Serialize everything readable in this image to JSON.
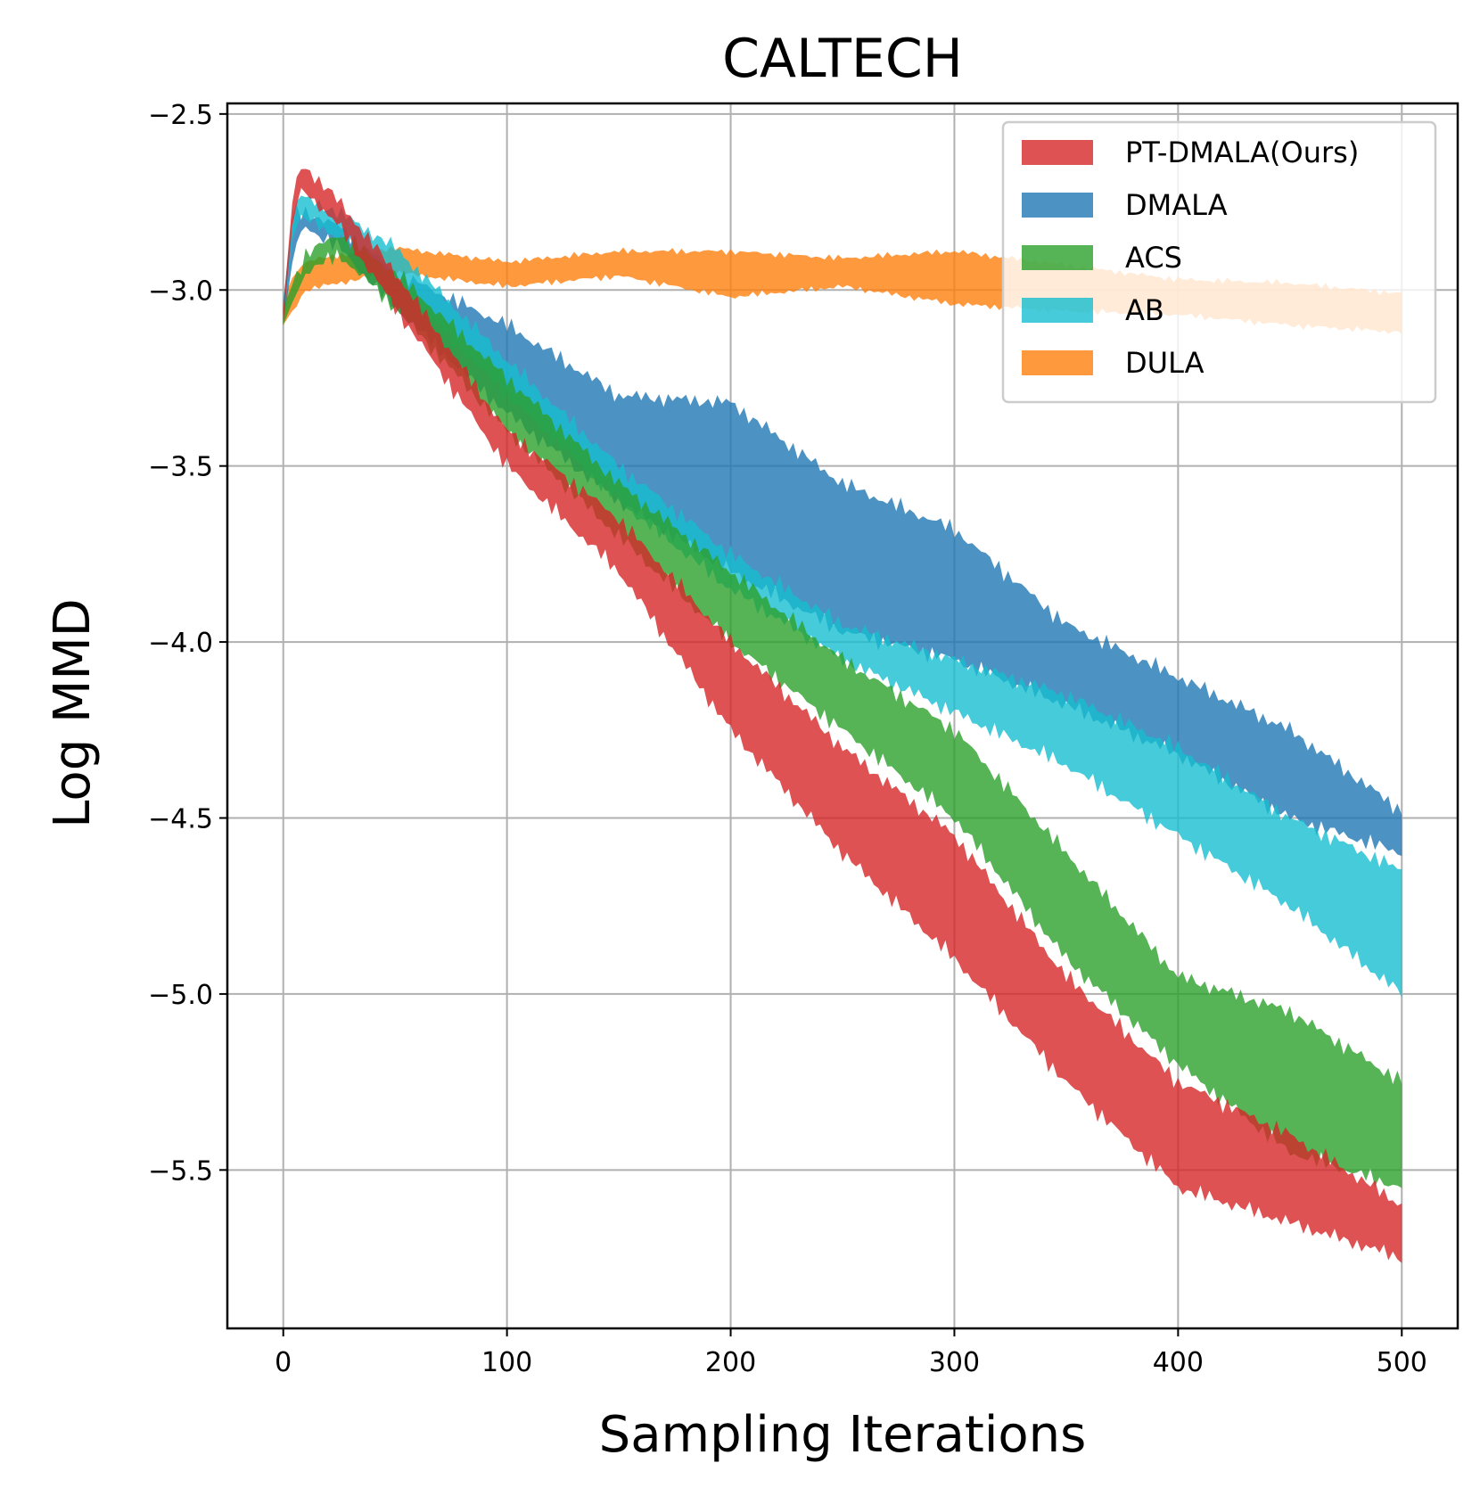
{
  "chart_data": {
    "type": "area",
    "title": "CALTECH",
    "xlabel": "Sampling Iterations",
    "ylabel": "Log MMD",
    "xlim": [
      -25,
      525
    ],
    "ylim": [
      -5.95,
      -2.47
    ],
    "xticks": [
      0,
      100,
      200,
      300,
      400,
      500
    ],
    "xtick_labels": [
      "0",
      "100",
      "200",
      "300",
      "400",
      "500"
    ],
    "yticks": [
      -2.5,
      -3.0,
      -3.5,
      -4.0,
      -4.5,
      -5.0,
      -5.5
    ],
    "ytick_labels": [
      "−2.5",
      "−3.0",
      "−3.5",
      "−4.0",
      "−4.5",
      "−5.0",
      "−5.5"
    ],
    "grid": true,
    "legend_position": "top-right",
    "series": [
      {
        "name": "DULA",
        "color": "#ff7f0e",
        "x": [
          0,
          5,
          10,
          25,
          50,
          100,
          150,
          200,
          250,
          300,
          350,
          400,
          450,
          500
        ],
        "upper": [
          -3.03,
          -2.95,
          -2.92,
          -2.9,
          -2.88,
          -2.92,
          -2.89,
          -2.89,
          -2.91,
          -2.89,
          -2.93,
          -2.97,
          -2.98,
          -3.01
        ],
        "lower": [
          -3.1,
          -3.05,
          -3.0,
          -2.98,
          -2.95,
          -2.99,
          -2.96,
          -3.02,
          -2.99,
          -3.04,
          -3.06,
          -3.07,
          -3.1,
          -3.12
        ]
      },
      {
        "name": "DMALA",
        "color": "#1f77b4",
        "x": [
          0,
          5,
          10,
          25,
          50,
          100,
          150,
          200,
          250,
          300,
          350,
          400,
          450,
          500
        ],
        "upper": [
          -3.03,
          -2.78,
          -2.78,
          -2.82,
          -2.95,
          -3.1,
          -3.3,
          -3.32,
          -3.55,
          -3.68,
          -3.95,
          -4.1,
          -4.25,
          -4.48
        ],
        "lower": [
          -3.1,
          -2.88,
          -2.82,
          -2.88,
          -3.05,
          -3.35,
          -3.6,
          -3.8,
          -3.97,
          -4.05,
          -4.18,
          -4.32,
          -4.5,
          -4.6
        ]
      },
      {
        "name": "AB",
        "color": "#17becf",
        "x": [
          0,
          5,
          10,
          25,
          50,
          100,
          150,
          200,
          250,
          300,
          350,
          400,
          450,
          500
        ],
        "upper": [
          -3.03,
          -2.74,
          -2.74,
          -2.78,
          -2.88,
          -3.2,
          -3.5,
          -3.75,
          -3.95,
          -4.05,
          -4.15,
          -4.3,
          -4.5,
          -4.65
        ],
        "lower": [
          -3.1,
          -2.8,
          -2.8,
          -2.85,
          -2.98,
          -3.3,
          -3.6,
          -3.85,
          -4.05,
          -4.2,
          -4.35,
          -4.55,
          -4.75,
          -5.0
        ]
      },
      {
        "name": "ACS",
        "color": "#2ca02c",
        "x": [
          0,
          5,
          10,
          25,
          50,
          100,
          150,
          200,
          250,
          300,
          350,
          400,
          450,
          500
        ],
        "upper": [
          -3.05,
          -2.97,
          -2.9,
          -2.84,
          -2.95,
          -3.25,
          -3.55,
          -3.8,
          -4.05,
          -4.25,
          -4.6,
          -4.95,
          -5.05,
          -5.25
        ],
        "lower": [
          -3.1,
          -3.02,
          -2.95,
          -2.9,
          -3.05,
          -3.4,
          -3.7,
          -4.0,
          -4.25,
          -4.5,
          -4.9,
          -5.2,
          -5.45,
          -5.55
        ]
      },
      {
        "name": "PT-DMALA(Ours)",
        "color": "#d62728",
        "x": [
          0,
          5,
          10,
          25,
          50,
          100,
          150,
          200,
          250,
          300,
          350,
          400,
          450,
          500
        ],
        "upper": [
          -3.05,
          -2.68,
          -2.65,
          -2.75,
          -2.95,
          -3.4,
          -3.65,
          -4.0,
          -4.3,
          -4.55,
          -4.95,
          -5.25,
          -5.4,
          -5.6
        ],
        "lower": [
          -3.1,
          -2.75,
          -2.72,
          -2.82,
          -3.05,
          -3.5,
          -3.8,
          -4.25,
          -4.6,
          -4.9,
          -5.25,
          -5.55,
          -5.65,
          -5.75
        ]
      }
    ],
    "legend_order": [
      "PT-DMALA(Ours)",
      "DMALA",
      "ACS",
      "AB",
      "DULA"
    ]
  }
}
